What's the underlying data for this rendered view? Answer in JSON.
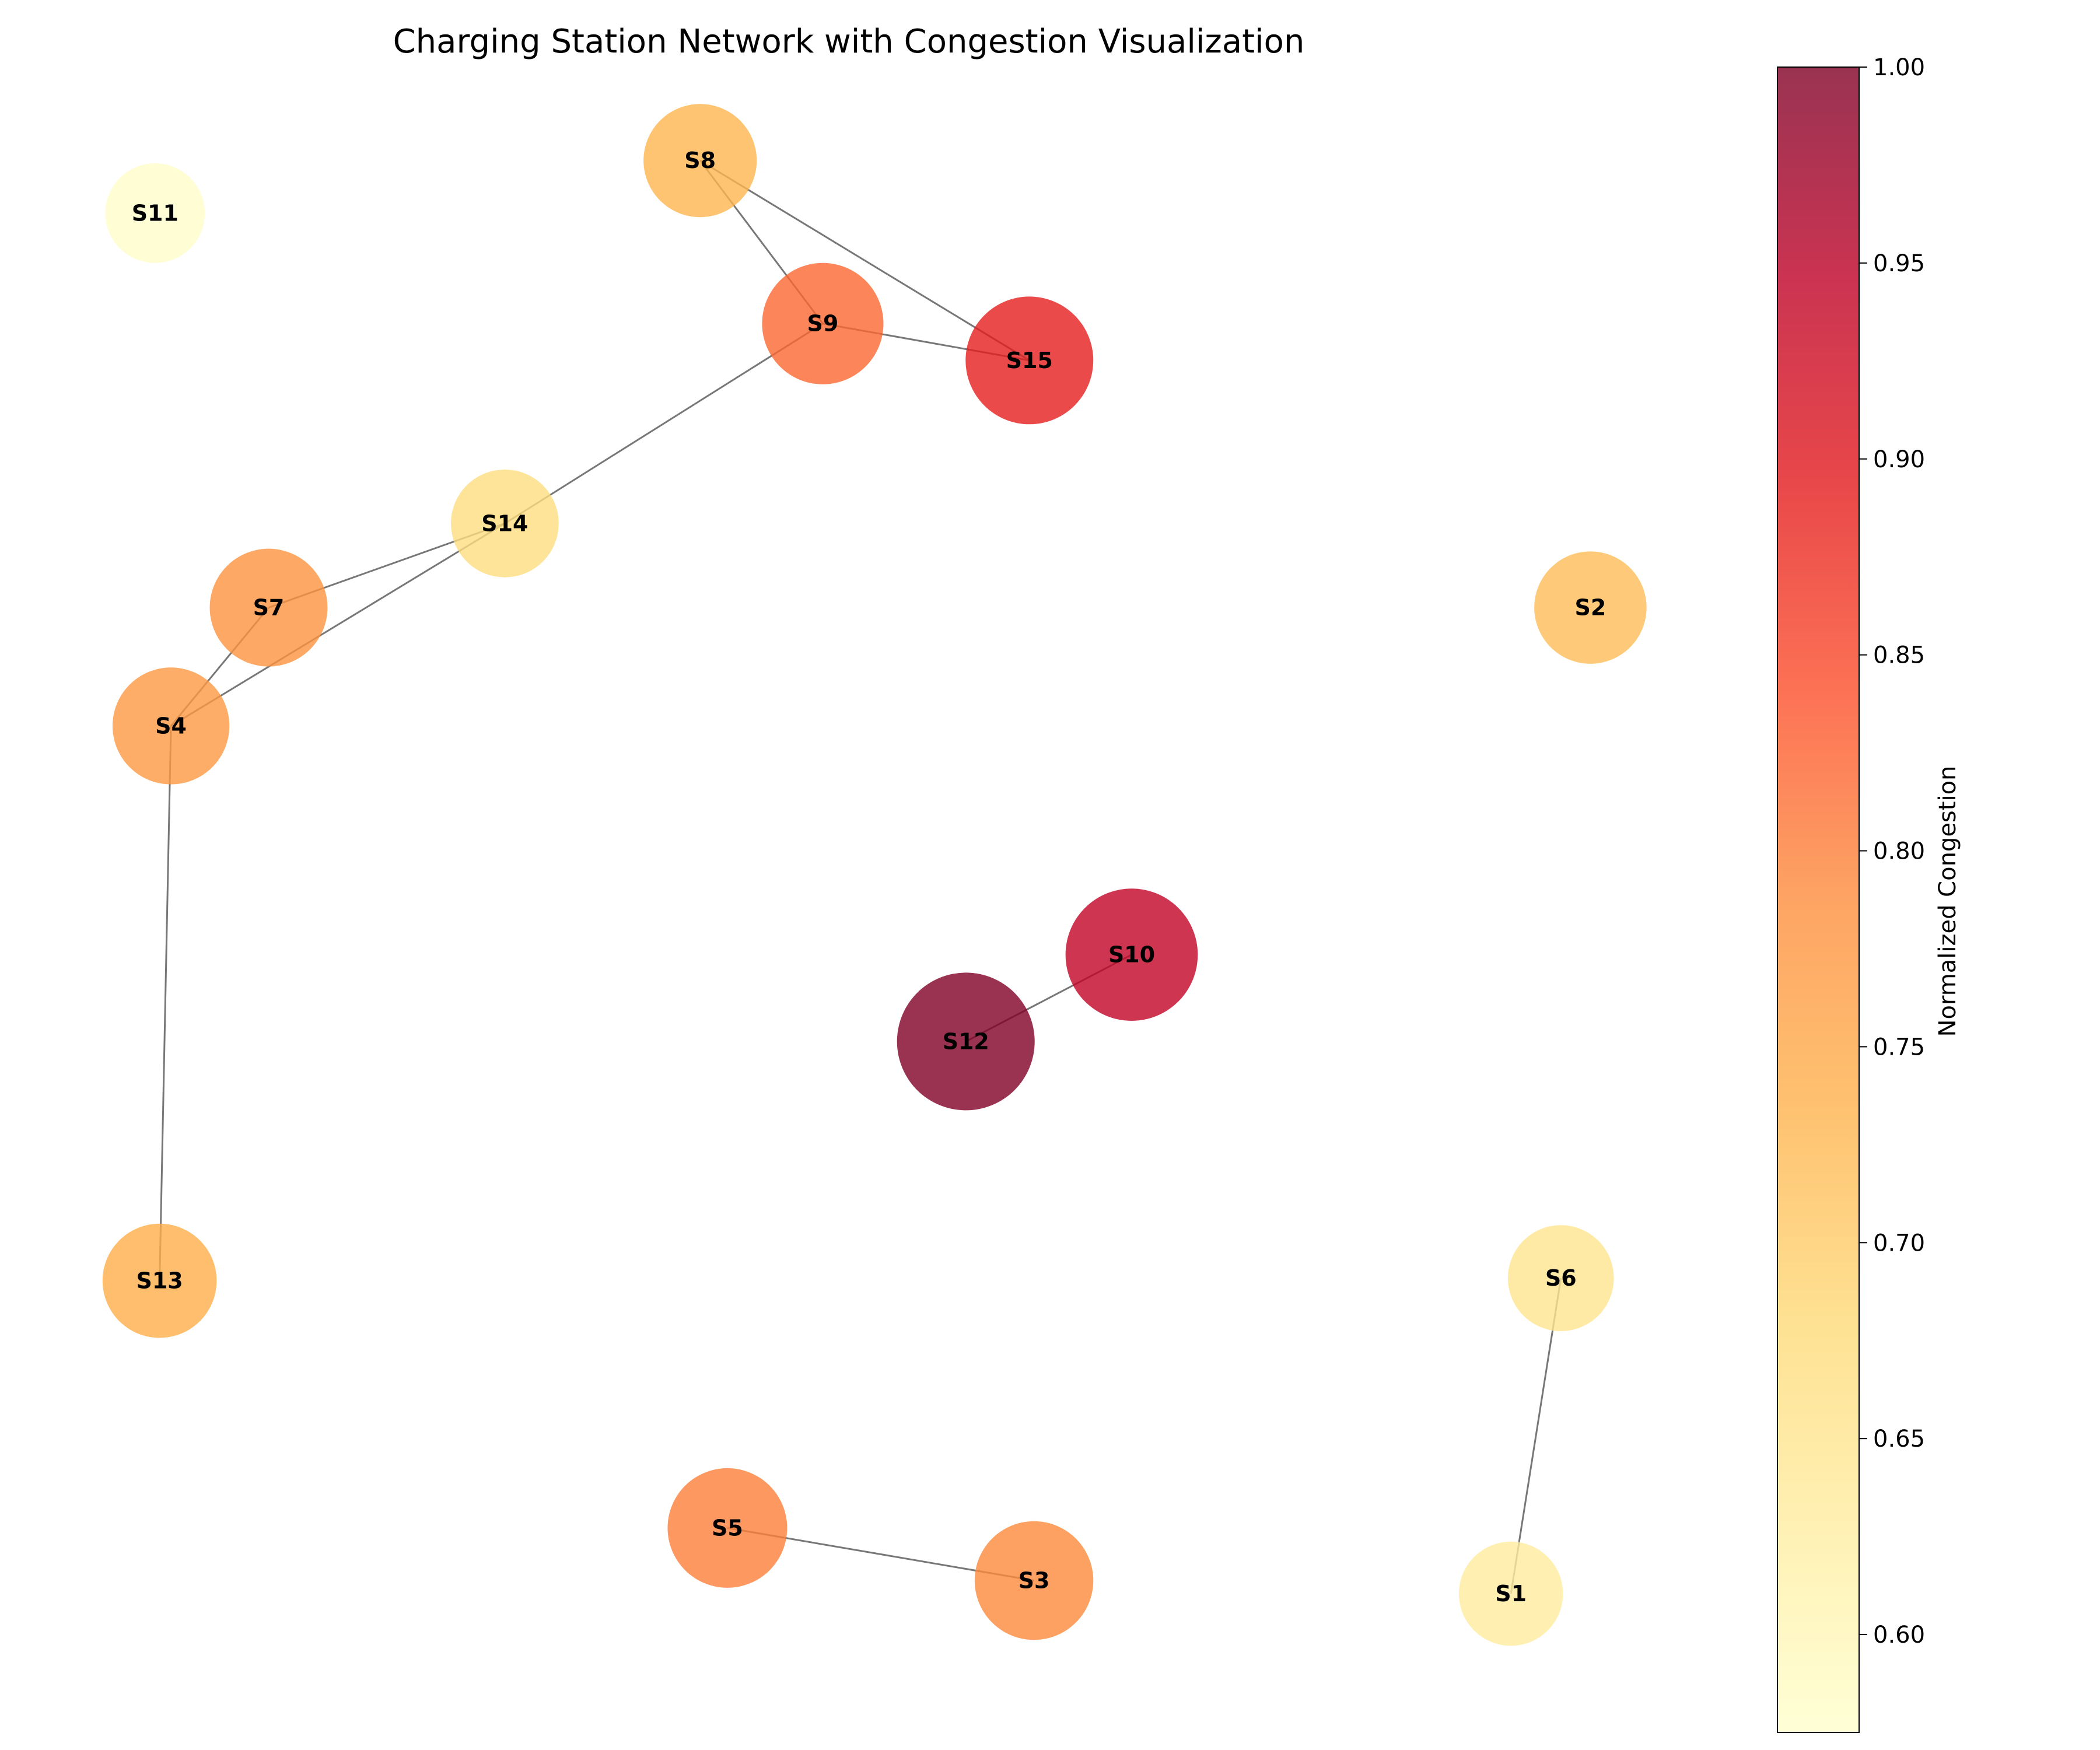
{
  "title": "Charging Station Network with Congestion Visualization",
  "colorbar": {
    "label": "Normalized Congestion",
    "min": 0.575,
    "max": 1.0,
    "ticks": [
      "0.60",
      "0.65",
      "0.70",
      "0.75",
      "0.80",
      "0.85",
      "0.90",
      "0.95",
      "1.00"
    ],
    "colormap": "YlOrRd",
    "stops": [
      "#ffffcc",
      "#ffeda0",
      "#fed976",
      "#feb24c",
      "#fd8d3c",
      "#fc4e2a",
      "#e31a1c",
      "#bd0026",
      "#800026"
    ]
  },
  "nodes": [
    {
      "id": "S1",
      "label": "S1",
      "congestion": 0.63,
      "x": 6.55,
      "y": 0.55
    },
    {
      "id": "S2",
      "label": "S2",
      "congestion": 0.72,
      "x": 6.9,
      "y": 4.3
    },
    {
      "id": "S3",
      "label": "S3",
      "congestion": 0.79,
      "x": 4.45,
      "y": 0.6
    },
    {
      "id": "S4",
      "label": "S4",
      "congestion": 0.77,
      "x": 0.65,
      "y": 3.85
    },
    {
      "id": "S5",
      "label": "S5",
      "congestion": 0.8,
      "x": 3.1,
      "y": 0.8
    },
    {
      "id": "S6",
      "label": "S6",
      "congestion": 0.65,
      "x": 6.77,
      "y": 1.75
    },
    {
      "id": "S7",
      "label": "S7",
      "congestion": 0.78,
      "x": 1.08,
      "y": 4.3
    },
    {
      "id": "S8",
      "label": "S8",
      "congestion": 0.73,
      "x": 2.98,
      "y": 6.0
    },
    {
      "id": "S9",
      "label": "S9",
      "congestion": 0.82,
      "x": 3.52,
      "y": 5.38
    },
    {
      "id": "S10",
      "label": "S10",
      "congestion": 0.94,
      "x": 4.88,
      "y": 2.98
    },
    {
      "id": "S11",
      "label": "S11",
      "congestion": 0.58,
      "x": 0.58,
      "y": 5.8
    },
    {
      "id": "S12",
      "label": "S12",
      "congestion": 1.0,
      "x": 4.15,
      "y": 2.65
    },
    {
      "id": "S13",
      "label": "S13",
      "congestion": 0.74,
      "x": 0.6,
      "y": 1.74
    },
    {
      "id": "S14",
      "label": "S14",
      "congestion": 0.67,
      "x": 2.12,
      "y": 4.62
    },
    {
      "id": "S15",
      "label": "S15",
      "congestion": 0.89,
      "x": 4.43,
      "y": 5.24
    }
  ],
  "edges": [
    [
      "S8",
      "S9"
    ],
    [
      "S8",
      "S15"
    ],
    [
      "S9",
      "S15"
    ],
    [
      "S9",
      "S14"
    ],
    [
      "S14",
      "S7"
    ],
    [
      "S14",
      "S4"
    ],
    [
      "S7",
      "S4"
    ],
    [
      "S4",
      "S13"
    ],
    [
      "S10",
      "S12"
    ],
    [
      "S5",
      "S3"
    ],
    [
      "S6",
      "S1"
    ]
  ]
}
